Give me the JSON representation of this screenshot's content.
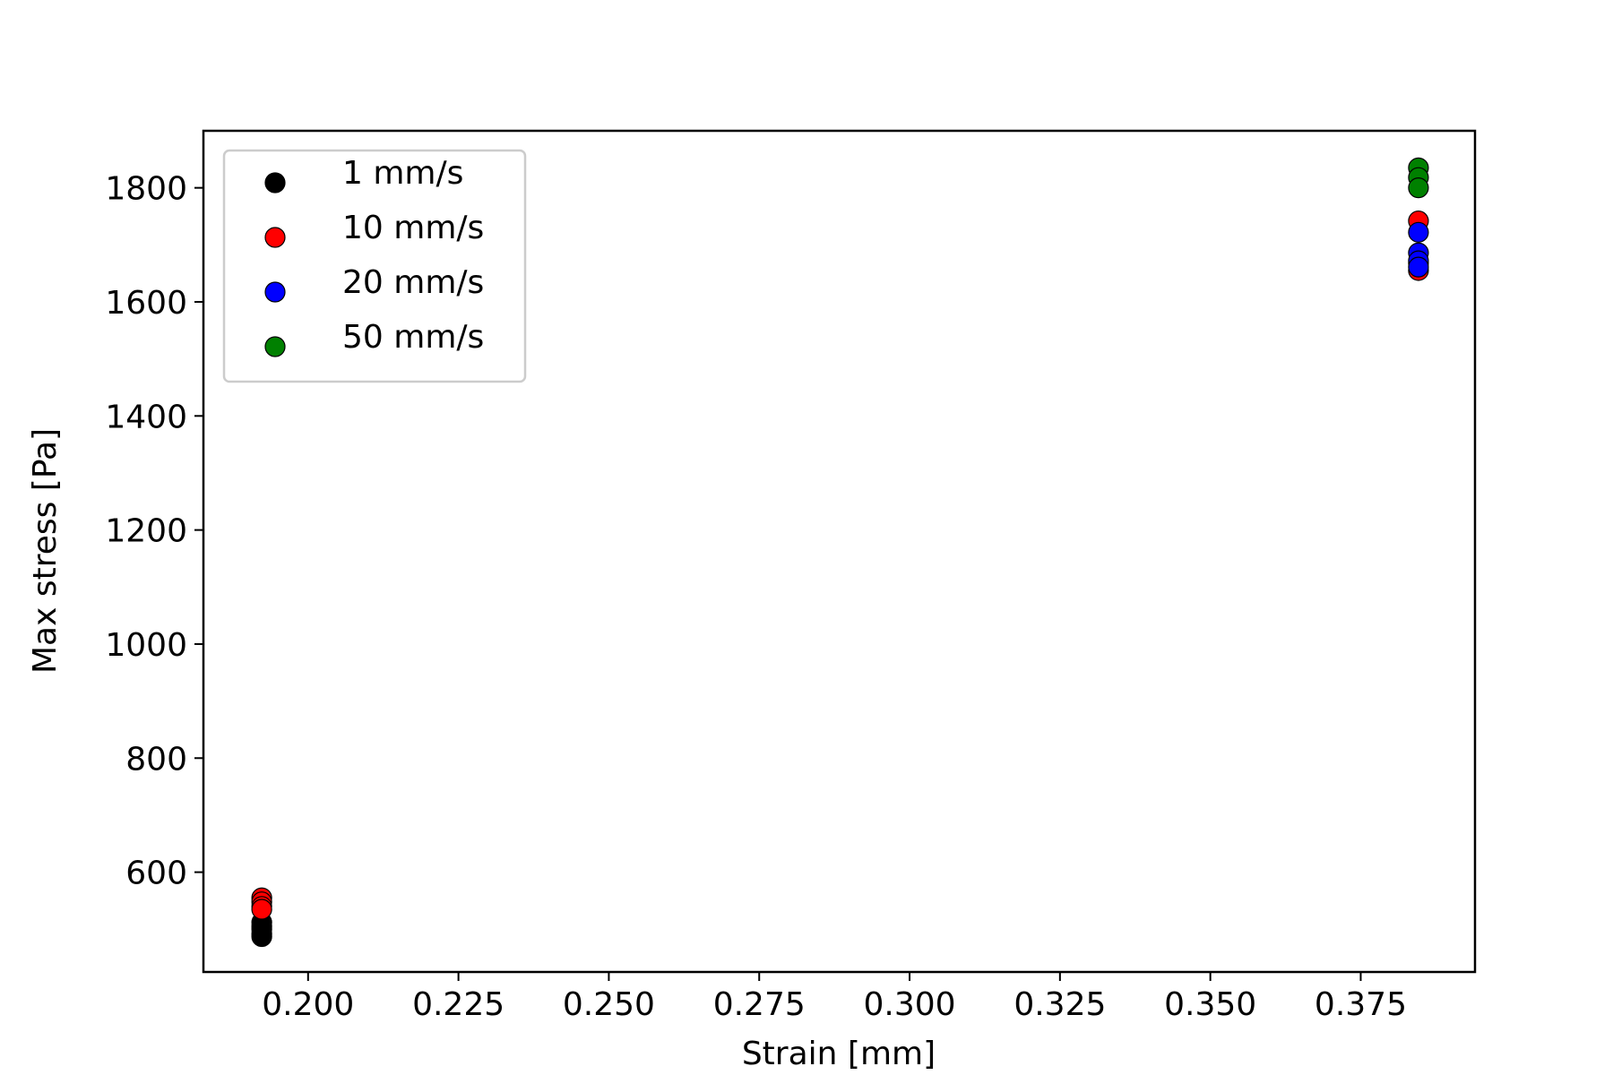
{
  "chart_data": {
    "type": "scatter",
    "title": "",
    "xlabel": "Strain [mm]",
    "ylabel": "Max stress [Pa]",
    "xlim": [
      0.1826,
      0.394
    ],
    "ylim": [
      425,
      1900
    ],
    "xticks": [
      0.2,
      0.225,
      0.25,
      0.275,
      0.3,
      0.325,
      0.35,
      0.375
    ],
    "xtick_labels": [
      "0.200",
      "0.225",
      "0.250",
      "0.275",
      "0.300",
      "0.325",
      "0.350",
      "0.375"
    ],
    "yticks": [
      600,
      800,
      1000,
      1200,
      1400,
      1600,
      1800
    ],
    "ytick_labels": [
      "600",
      "800",
      "1000",
      "1200",
      "1400",
      "1600",
      "1800"
    ],
    "grid": false,
    "legend_position": "upper-left",
    "series": [
      {
        "name": "1 mm/s",
        "color": "#000000",
        "points": [
          [
            0.1923,
            487
          ],
          [
            0.1923,
            492
          ],
          [
            0.1923,
            500
          ],
          [
            0.1923,
            505
          ],
          [
            0.1923,
            512
          ]
        ]
      },
      {
        "name": "10 mm/s",
        "color": "#ff0000",
        "points": [
          [
            0.1923,
            555
          ],
          [
            0.1923,
            548
          ],
          [
            0.1923,
            540
          ],
          [
            0.1923,
            535
          ],
          [
            0.3846,
            1742
          ],
          [
            0.3846,
            1655
          ],
          [
            0.3846,
            1668
          ]
        ]
      },
      {
        "name": "20 mm/s",
        "color": "#0000ff",
        "points": [
          [
            0.3846,
            1722
          ],
          [
            0.3846,
            1686
          ],
          [
            0.3846,
            1672
          ],
          [
            0.3846,
            1661
          ]
        ]
      },
      {
        "name": "50 mm/s",
        "color": "#008000",
        "points": [
          [
            0.3846,
            1835
          ],
          [
            0.3846,
            1818
          ],
          [
            0.3846,
            1800
          ]
        ]
      }
    ]
  }
}
